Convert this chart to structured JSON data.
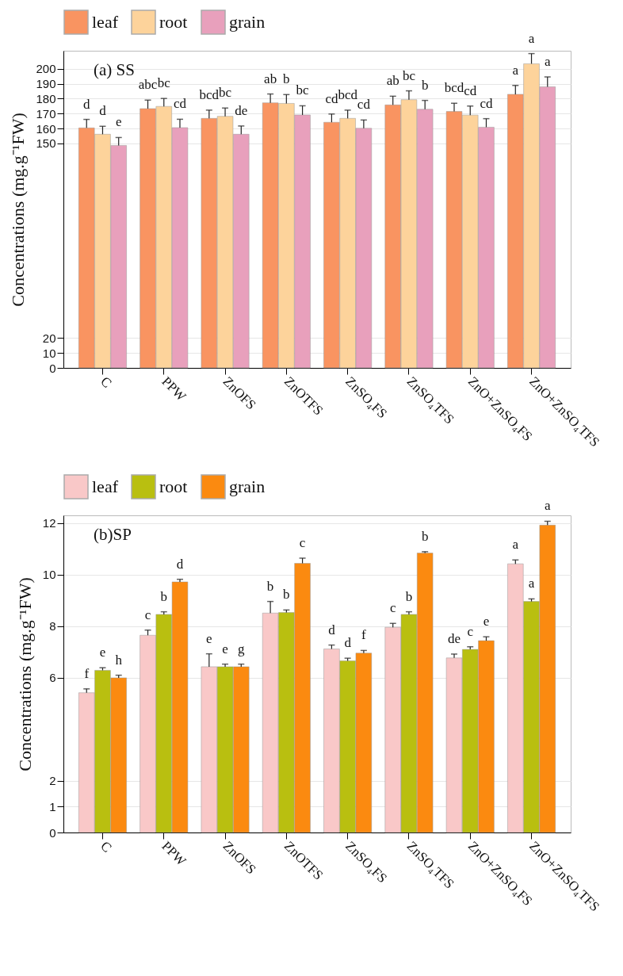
{
  "chart_data": [
    {
      "type": "bar",
      "title": "(a) SS",
      "ylabel": "Concentrations (mg.g⁻¹FW)",
      "categories": [
        "C",
        "PPW",
        "ZnOFS",
        "ZnOTFS",
        "ZnSO₄FS",
        "ZnSO₄TFS",
        "ZnO+ZnSO₄FS",
        "ZnO+ZnSO₄TFS"
      ],
      "series": [
        {
          "name": "leaf",
          "color": "#f99461",
          "values": [
            160.4,
            173.3,
            166.8,
            177.2,
            164.2,
            175.8,
            171.4,
            182.9
          ],
          "errors": [
            5.7,
            5.7,
            5.5,
            5.9,
            5.5,
            5.8,
            5.5,
            5.9
          ],
          "value_labels": [
            "d",
            "abc",
            "bcd",
            "ab",
            "cd",
            "ab",
            "bcd",
            "a"
          ]
        },
        {
          "name": "root",
          "color": "#fdd39b",
          "values": [
            156.2,
            174.8,
            168.2,
            176.8,
            166.8,
            179.3,
            169.0,
            203.3
          ],
          "errors": [
            5.3,
            5.3,
            5.5,
            5.9,
            5.5,
            5.9,
            6.0,
            6.8
          ],
          "value_labels": [
            "d",
            "bc",
            "bc",
            "b",
            "bcd",
            "bc",
            "cd",
            "a"
          ]
        },
        {
          "name": "grain",
          "color": "#e8a0bc",
          "values": [
            148.7,
            160.6,
            156.2,
            169.1,
            160.2,
            172.9,
            160.9,
            187.9
          ],
          "errors": [
            5.3,
            5.6,
            5.5,
            6.1,
            5.5,
            5.9,
            5.7,
            6.6
          ],
          "value_labels": [
            "e",
            "cd",
            "de",
            "bc",
            "cd",
            "b",
            "cd",
            "a"
          ]
        }
      ],
      "ylim": [
        0,
        212
      ],
      "yticks": [
        0,
        10,
        20,
        150,
        160,
        170,
        180,
        190,
        200
      ],
      "grid": "y",
      "legend": "top"
    },
    {
      "type": "bar",
      "title": "(b)SP",
      "ylabel": "Concentrations (mg.g⁻¹FW)",
      "categories": [
        "C",
        "PPW",
        "ZnOFS",
        "ZnOTFS",
        "ZnSO₄FS",
        "ZnSO₄TFS",
        "ZnO+ZnSO₄FS",
        "ZnO+ZnSO₄TFS"
      ],
      "series": [
        {
          "name": "leaf",
          "color": "#f9c8c8",
          "values": [
            5.42,
            7.65,
            6.43,
            8.51,
            7.12,
            7.96,
            6.77,
            10.42
          ],
          "errors": [
            0.15,
            0.2,
            0.5,
            0.45,
            0.15,
            0.15,
            0.15,
            0.15
          ],
          "value_labels": [
            "f",
            "c",
            "e",
            "b",
            "d",
            "c",
            "de",
            "a"
          ]
        },
        {
          "name": "root",
          "color": "#b9bf10",
          "values": [
            6.29,
            8.46,
            6.43,
            8.53,
            6.66,
            8.46,
            7.1,
            8.96
          ],
          "errors": [
            0.1,
            0.1,
            0.1,
            0.1,
            0.1,
            0.1,
            0.1,
            0.1
          ],
          "value_labels": [
            "e",
            "b",
            "e",
            "b",
            "d",
            "b",
            "c",
            "a"
          ]
        },
        {
          "name": "grain",
          "color": "#fb8a10",
          "values": [
            6.0,
            9.72,
            6.43,
            10.44,
            6.96,
            10.84,
            7.44,
            11.92
          ],
          "errors": [
            0.1,
            0.1,
            0.1,
            0.2,
            0.1,
            0.05,
            0.15,
            0.15
          ],
          "value_labels": [
            "h",
            "d",
            "g",
            "c",
            "f",
            "b",
            "e",
            "a"
          ]
        }
      ],
      "ylim": [
        0,
        12.3
      ],
      "yticks": [
        0,
        1,
        2,
        6,
        8,
        10,
        12
      ],
      "grid": "y",
      "legend": "top"
    }
  ]
}
